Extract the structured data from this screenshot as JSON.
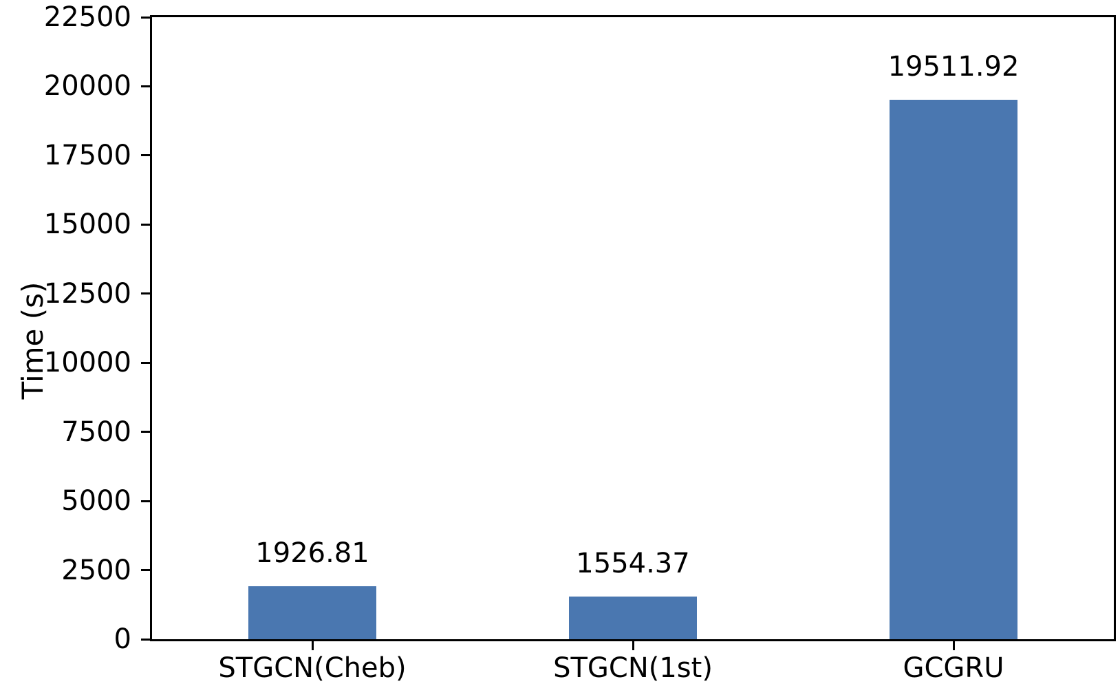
{
  "chart_data": {
    "type": "bar",
    "title": "",
    "categories": [
      "STGCN(Cheb)",
      "STGCN(1st)",
      "GCGRU"
    ],
    "values": [
      1926.81,
      1554.37,
      19511.92
    ],
    "bar_labels": [
      "1926.81",
      "1554.37",
      "19511.92"
    ],
    "xlabel": "",
    "ylabel": "Time (s)",
    "ylim": [
      0,
      22500
    ],
    "yticks": [
      0,
      2500,
      5000,
      7500,
      10000,
      12500,
      15000,
      17500,
      20000,
      22500
    ],
    "bar_color": "#4a77b0",
    "axis_color": "#000000",
    "grid": false,
    "legend": "none",
    "bar_width_fraction": 0.4
  }
}
